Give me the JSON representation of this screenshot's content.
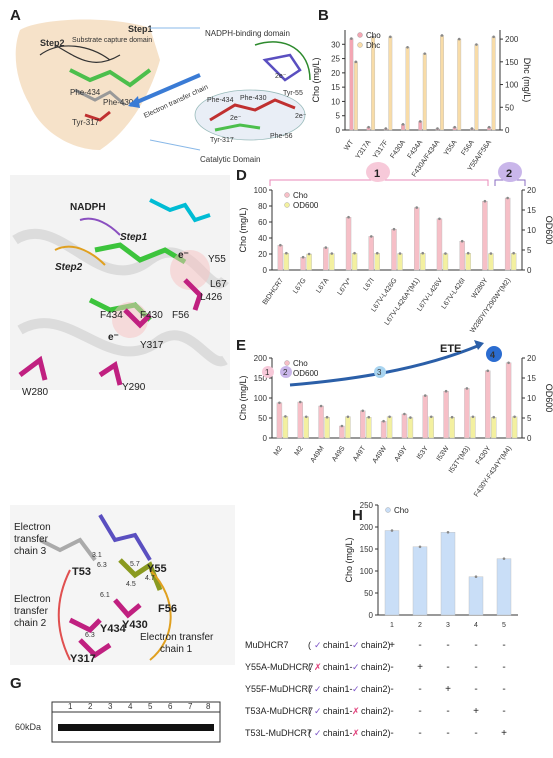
{
  "panels": {
    "A": {
      "letter": "A",
      "step1": "Step1",
      "step2": "Step2",
      "substrate": "Substrate capture domain",
      "nadph_domain": "NADPH-binding domain",
      "etc": "Electron transfer chain",
      "catalytic": "Catalytic Domain",
      "residues_left": [
        "Phe-434",
        "Phe-430",
        "Tyr-317"
      ],
      "residues_right": [
        "Phe-434",
        "Phe-430",
        "Tyr-55",
        "Tyr-317",
        "Phe-56"
      ],
      "electron": "2e⁻"
    },
    "B": {
      "letter": "B"
    },
    "C": {
      "letter": "C",
      "nadph": "NADPH",
      "step1": "Step1",
      "step2": "Step2",
      "residues": [
        "Y55",
        "L67",
        "L426",
        "F56",
        "F430",
        "F434",
        "Y317",
        "Y290",
        "W280"
      ],
      "electron": "e⁻"
    },
    "D": {
      "letter": "D",
      "bubbles": [
        "1",
        "2"
      ]
    },
    "E": {
      "letter": "E",
      "bubbles": [
        "1",
        "2",
        "3",
        "4"
      ],
      "ete": "ETE"
    },
    "F": {
      "letter": "F",
      "chain3": [
        "Electron",
        "transfer",
        "chain 3"
      ],
      "chain2": [
        "Electron",
        "transfer",
        "chain 2"
      ],
      "chain1": [
        "Electron transfer",
        "chain 1"
      ],
      "residues": [
        "Y55",
        "T53",
        "F56",
        "Y430",
        "Y434",
        "Y317"
      ],
      "distances": [
        "3.1",
        "6.3",
        "5.7",
        "4.7",
        "4.5",
        "6.1",
        "6.3"
      ]
    },
    "G": {
      "letter": "G",
      "lanes": [
        "1",
        "2",
        "3",
        "4",
        "5",
        "6",
        "7",
        "8"
      ],
      "marker": "60kDa"
    },
    "H": {
      "letter": "H",
      "table": [
        {
          "label": "MuDHCR7",
          "c1": "check",
          "c2": "check",
          "marks": [
            "+",
            "-",
            "-",
            "-",
            "-"
          ]
        },
        {
          "label": "Y55A-MuDHCR7",
          "c1": "cross",
          "c2": "check",
          "marks": [
            "-",
            "+",
            "-",
            "-",
            "-"
          ]
        },
        {
          "label": "Y55F-MuDHCR7",
          "c1": "check",
          "c2": "check",
          "marks": [
            "-",
            "-",
            "+",
            "-",
            "-"
          ]
        },
        {
          "label": "T53A-MuDHCR7",
          "c1": "check",
          "c2": "cross",
          "marks": [
            "-",
            "-",
            "-",
            "+",
            "-"
          ]
        },
        {
          "label": "T53L-MuDHCR7",
          "c1": "check",
          "c2": "cross",
          "marks": [
            "-",
            "-",
            "-",
            "-",
            "+"
          ]
        }
      ],
      "paren_open": "(",
      "chain1": "chain1-",
      "chain2": "chain2)"
    }
  },
  "chart_data": [
    {
      "id": "B",
      "type": "bar",
      "categories": [
        "WT",
        "Y317A",
        "Y317F",
        "F430A",
        "F434A",
        "F430A/F434A",
        "Y55A",
        "F56A",
        "Y55A/F56A"
      ],
      "series": [
        {
          "name": "Cho",
          "axis": "left",
          "values": [
            32,
            1,
            0.5,
            2,
            3,
            0.5,
            1,
            0.5,
            1
          ],
          "color": "#f4a6b3"
        },
        {
          "name": "Dhc",
          "axis": "right",
          "values": [
            150,
            205,
            205,
            182,
            168,
            208,
            200,
            188,
            205
          ],
          "color": "#f8dca8"
        }
      ],
      "ylabel": "Cho (mg/L)",
      "y2label": "Dhc (mg/L)",
      "ylim": [
        0,
        35
      ],
      "y2lim": [
        0,
        220
      ],
      "yticks": [
        "0",
        "5",
        "10",
        "15",
        "20",
        "25",
        "30"
      ],
      "y2ticks": [
        "0",
        "50",
        "100",
        "150",
        "200"
      ],
      "legend": [
        "Cho",
        "Dhc"
      ]
    },
    {
      "id": "D",
      "type": "bar",
      "categories": [
        "BtDHCR7",
        "L67G",
        "L67A",
        "L67V*",
        "L67I",
        "L67V-L426G",
        "L67V-L426A*(M1)",
        "L67V-L426V",
        "L67V-L426I",
        "W280Y",
        "W280Y/Y290W*(M2)"
      ],
      "series": [
        {
          "name": "Cho",
          "axis": "left",
          "values": [
            31,
            16,
            28,
            66,
            42,
            51,
            78,
            64,
            36,
            86,
            90
          ],
          "color": "#f6bfc7"
        },
        {
          "name": "OD600",
          "axis": "right",
          "values": [
            4.2,
            4.0,
            4.1,
            4.2,
            4.2,
            4.1,
            4.2,
            4.1,
            4.2,
            4.1,
            4.2
          ],
          "color": "#f3f0a0"
        }
      ],
      "ylabel": "Cho (mg/L)",
      "y2label": "OD600",
      "ylim": [
        0,
        100
      ],
      "y2lim": [
        0,
        20
      ],
      "yticks": [
        "0",
        "20",
        "40",
        "60",
        "80",
        "100"
      ],
      "y2ticks": [
        "0",
        "5",
        "10",
        "15",
        "20"
      ],
      "legend": [
        "Cho",
        "OD600"
      ]
    },
    {
      "id": "E",
      "type": "bar",
      "categories": [
        "M2",
        "M2",
        "A49M",
        "A49S",
        "A49T",
        "A49W",
        "A49Y",
        "I53Y",
        "I53W",
        "I53T*(M3)",
        "F430Y",
        "F430Y-F434Y*(M4)"
      ],
      "series": [
        {
          "name": "Cho",
          "axis": "left",
          "values": [
            88,
            90,
            80,
            30,
            68,
            42,
            60,
            106,
            117,
            124,
            168,
            188
          ],
          "color": "#f6bfc7"
        },
        {
          "name": "OD600",
          "axis": "right",
          "values": [
            5.4,
            5.3,
            5.2,
            5.3,
            5.2,
            5.3,
            5.1,
            5.3,
            5.2,
            5.3,
            5.2,
            5.3
          ],
          "color": "#f3f0a0"
        }
      ],
      "ylabel": "Cho (mg/L)",
      "y2label": "OD600",
      "ylim": [
        0,
        200
      ],
      "y2lim": [
        0,
        20
      ],
      "yticks": [
        "0",
        "50",
        "100",
        "150",
        "200"
      ],
      "y2ticks": [
        "0",
        "5",
        "10",
        "15",
        "20"
      ],
      "legend": [
        "Cho",
        "OD600"
      ]
    },
    {
      "id": "H",
      "type": "bar",
      "categories": [
        "1",
        "2",
        "3",
        "4",
        "5"
      ],
      "series": [
        {
          "name": "Cho",
          "values": [
            192,
            155,
            188,
            87,
            128
          ],
          "color": "#c9def7"
        }
      ],
      "ylabel": "Cho (mg/L)",
      "ylim": [
        0,
        250
      ],
      "yticks": [
        "0",
        "50",
        "100",
        "150",
        "200",
        "250"
      ],
      "legend": [
        "Cho"
      ]
    }
  ]
}
